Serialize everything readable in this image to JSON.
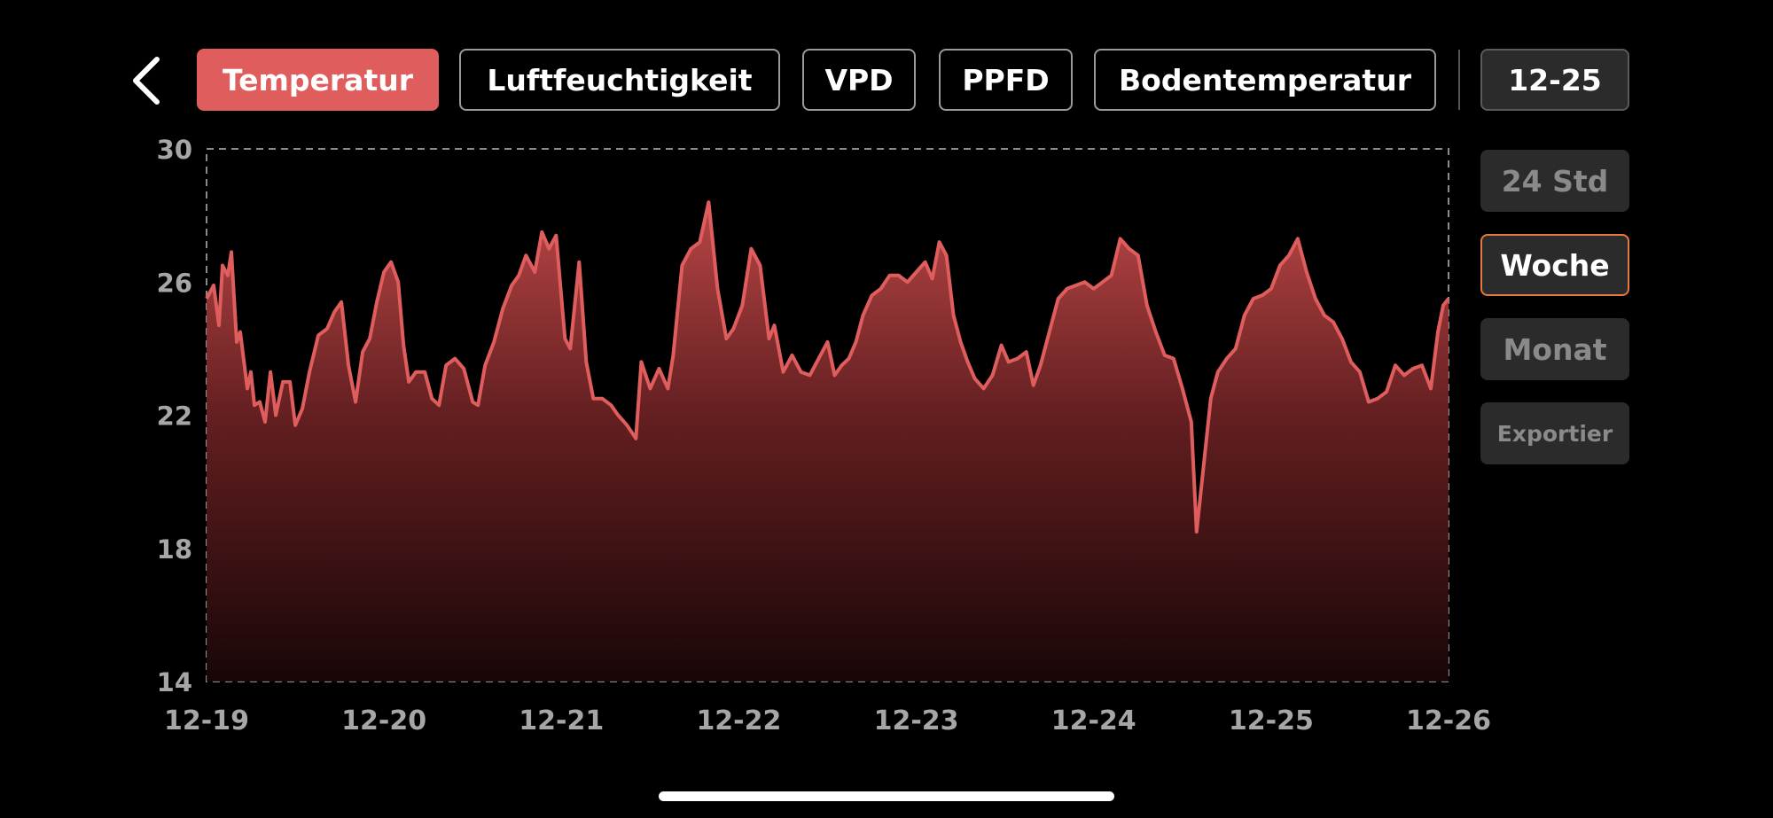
{
  "header": {
    "back_icon": "chevron-left-icon",
    "tabs": [
      {
        "label": "Temperatur",
        "active": true
      },
      {
        "label": "Luftfeuchtigkeit",
        "active": false
      },
      {
        "label": "VPD",
        "active": false
      },
      {
        "label": "PPFD",
        "active": false
      },
      {
        "label": "Bodentemperatur",
        "active": false
      }
    ],
    "date_label": "12-25"
  },
  "range_buttons": [
    {
      "label": "24 Std",
      "active": false
    },
    {
      "label": "Woche",
      "active": true
    },
    {
      "label": "Monat",
      "active": false
    },
    {
      "label": "Exportier",
      "active": false
    }
  ],
  "colors": {
    "accent": "#e05d5d",
    "active_border": "#e8793e",
    "button_bg": "#2b2b2b",
    "axis_text": "#a6a6a6"
  },
  "chart_data": {
    "type": "area",
    "title": "",
    "xlabel": "",
    "ylabel": "",
    "ylim": [
      14,
      30
    ],
    "y_ticks": [
      14,
      18,
      22,
      26,
      30
    ],
    "x_ticks": [
      "12-19",
      "12-20",
      "12-21",
      "12-22",
      "12-23",
      "12-24",
      "12-25",
      "12-26"
    ],
    "xlim": [
      0,
      7
    ],
    "grid": false,
    "frame": "dashed",
    "series": [
      {
        "color": "#e05d5d",
        "points": [
          [
            0.0,
            25.5
          ],
          [
            0.04,
            25.9
          ],
          [
            0.07,
            24.7
          ],
          [
            0.09,
            26.5
          ],
          [
            0.12,
            26.2
          ],
          [
            0.14,
            26.9
          ],
          [
            0.17,
            24.2
          ],
          [
            0.19,
            24.5
          ],
          [
            0.23,
            22.8
          ],
          [
            0.25,
            23.3
          ],
          [
            0.27,
            22.3
          ],
          [
            0.3,
            22.4
          ],
          [
            0.33,
            21.8
          ],
          [
            0.36,
            23.3
          ],
          [
            0.39,
            22.0
          ],
          [
            0.43,
            23.0
          ],
          [
            0.47,
            23.0
          ],
          [
            0.5,
            21.7
          ],
          [
            0.54,
            22.2
          ],
          [
            0.58,
            23.3
          ],
          [
            0.63,
            24.4
          ],
          [
            0.68,
            24.6
          ],
          [
            0.72,
            25.1
          ],
          [
            0.76,
            25.4
          ],
          [
            0.8,
            23.5
          ],
          [
            0.84,
            22.4
          ],
          [
            0.88,
            23.9
          ],
          [
            0.92,
            24.3
          ],
          [
            0.96,
            25.4
          ],
          [
            1.0,
            26.3
          ],
          [
            1.04,
            26.6
          ],
          [
            1.08,
            26.0
          ],
          [
            1.11,
            24.1
          ],
          [
            1.14,
            23.0
          ],
          [
            1.18,
            23.3
          ],
          [
            1.23,
            23.3
          ],
          [
            1.27,
            22.5
          ],
          [
            1.31,
            22.3
          ],
          [
            1.35,
            23.5
          ],
          [
            1.4,
            23.7
          ],
          [
            1.45,
            23.4
          ],
          [
            1.5,
            22.4
          ],
          [
            1.53,
            22.3
          ],
          [
            1.57,
            23.5
          ],
          [
            1.62,
            24.2
          ],
          [
            1.67,
            25.2
          ],
          [
            1.72,
            25.9
          ],
          [
            1.76,
            26.2
          ],
          [
            1.8,
            26.8
          ],
          [
            1.85,
            26.3
          ],
          [
            1.89,
            27.5
          ],
          [
            1.93,
            27.0
          ],
          [
            1.97,
            27.4
          ],
          [
            2.02,
            24.3
          ],
          [
            2.05,
            24.0
          ],
          [
            2.1,
            26.6
          ],
          [
            2.14,
            23.6
          ],
          [
            2.18,
            22.5
          ],
          [
            2.23,
            22.5
          ],
          [
            2.28,
            22.3
          ],
          [
            2.32,
            22.0
          ],
          [
            2.37,
            21.7
          ],
          [
            2.42,
            21.3
          ],
          [
            2.45,
            23.6
          ],
          [
            2.5,
            22.8
          ],
          [
            2.55,
            23.4
          ],
          [
            2.6,
            22.8
          ],
          [
            2.63,
            23.8
          ],
          [
            2.68,
            26.5
          ],
          [
            2.73,
            27.0
          ],
          [
            2.78,
            27.2
          ],
          [
            2.83,
            28.4
          ],
          [
            2.88,
            25.8
          ],
          [
            2.93,
            24.3
          ],
          [
            2.97,
            24.6
          ],
          [
            3.02,
            25.3
          ],
          [
            3.07,
            27.0
          ],
          [
            3.12,
            26.5
          ],
          [
            3.17,
            24.3
          ],
          [
            3.2,
            24.7
          ],
          [
            3.25,
            23.3
          ],
          [
            3.3,
            23.8
          ],
          [
            3.35,
            23.3
          ],
          [
            3.4,
            23.2
          ],
          [
            3.45,
            23.7
          ],
          [
            3.5,
            24.2
          ],
          [
            3.54,
            23.2
          ],
          [
            3.58,
            23.5
          ],
          [
            3.62,
            23.7
          ],
          [
            3.66,
            24.2
          ],
          [
            3.7,
            25.0
          ],
          [
            3.75,
            25.6
          ],
          [
            3.8,
            25.8
          ],
          [
            3.85,
            26.2
          ],
          [
            3.9,
            26.2
          ],
          [
            3.95,
            26.0
          ],
          [
            4.0,
            26.3
          ],
          [
            4.05,
            26.6
          ],
          [
            4.09,
            26.1
          ],
          [
            4.13,
            27.2
          ],
          [
            4.17,
            26.8
          ],
          [
            4.21,
            25.0
          ],
          [
            4.25,
            24.2
          ],
          [
            4.29,
            23.6
          ],
          [
            4.33,
            23.1
          ],
          [
            4.38,
            22.8
          ],
          [
            4.43,
            23.2
          ],
          [
            4.48,
            24.1
          ],
          [
            4.52,
            23.6
          ],
          [
            4.57,
            23.7
          ],
          [
            4.62,
            23.9
          ],
          [
            4.66,
            22.9
          ],
          [
            4.7,
            23.5
          ],
          [
            4.75,
            24.5
          ],
          [
            4.8,
            25.5
          ],
          [
            4.85,
            25.8
          ],
          [
            4.9,
            25.9
          ],
          [
            4.95,
            26.0
          ],
          [
            5.0,
            25.8
          ],
          [
            5.05,
            26.0
          ],
          [
            5.1,
            26.2
          ],
          [
            5.15,
            27.3
          ],
          [
            5.2,
            27.0
          ],
          [
            5.25,
            26.8
          ],
          [
            5.3,
            25.3
          ],
          [
            5.35,
            24.5
          ],
          [
            5.4,
            23.8
          ],
          [
            5.45,
            23.7
          ],
          [
            5.5,
            22.8
          ],
          [
            5.55,
            21.8
          ],
          [
            5.58,
            18.5
          ],
          [
            5.62,
            20.5
          ],
          [
            5.66,
            22.5
          ],
          [
            5.7,
            23.3
          ],
          [
            5.75,
            23.7
          ],
          [
            5.8,
            24.0
          ],
          [
            5.85,
            25.0
          ],
          [
            5.9,
            25.5
          ],
          [
            5.95,
            25.6
          ],
          [
            6.0,
            25.8
          ],
          [
            6.05,
            26.5
          ],
          [
            6.1,
            26.8
          ],
          [
            6.15,
            27.3
          ],
          [
            6.2,
            26.3
          ],
          [
            6.25,
            25.5
          ],
          [
            6.3,
            25.0
          ],
          [
            6.35,
            24.8
          ],
          [
            6.4,
            24.3
          ],
          [
            6.45,
            23.6
          ],
          [
            6.5,
            23.3
          ],
          [
            6.55,
            22.4
          ],
          [
            6.6,
            22.5
          ],
          [
            6.65,
            22.7
          ],
          [
            6.7,
            23.5
          ],
          [
            6.75,
            23.2
          ],
          [
            6.8,
            23.4
          ],
          [
            6.85,
            23.5
          ],
          [
            6.9,
            22.8
          ],
          [
            6.94,
            24.5
          ],
          [
            6.97,
            25.3
          ],
          [
            7.0,
            25.5
          ]
        ]
      }
    ]
  }
}
